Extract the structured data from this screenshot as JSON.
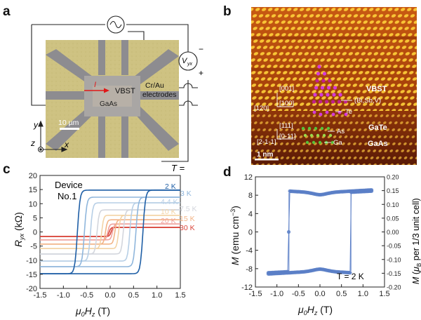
{
  "figure": {
    "panels": {
      "a": {
        "label": "a",
        "current_label": "I",
        "material_label": "VBST",
        "substrate_label": "GaAs",
        "electrode_label_1": "Cr/Au",
        "electrode_label_2": "electrodes",
        "voltage_label": "V",
        "voltage_sub": "yx",
        "minus_sign": "−",
        "plus_sign": "+",
        "scale_bar": "10 µm",
        "axis_y": "y",
        "axis_z": "z",
        "axis_x": "x"
      },
      "b": {
        "label": "b",
        "dir_001": "[001]",
        "dir_120": "[120]",
        "dir_100": "[100]",
        "dir_111": "[111]",
        "dir_0m11": "[0-11]",
        "dir_2m1m1": "[2-1-1]",
        "layer_vbst": "VBST",
        "layer_gate": "GaTe",
        "layer_gaas": "GaAs",
        "atom_bisbv": "(Bi,Sb,V)",
        "atom_te": "Te",
        "atom_as": "As",
        "atom_ga": "Ga",
        "scale_bar": "1 nm"
      },
      "c": {
        "label": "c",
        "device_line1": "Device",
        "device_line2": "No.1",
        "T_header": "T ="
      },
      "d": {
        "label": "d",
        "annotation": "T = 2 K"
      }
    }
  },
  "chart_data": [
    {
      "panel": "c",
      "type": "line",
      "xlabel": "μ0Hz (T)",
      "ylabel": "Ryx (kΩ)",
      "xlim": [
        -1.5,
        1.5
      ],
      "ylim": [
        -20,
        20
      ],
      "xticks": [
        "-1.5",
        "-1.0",
        "-0.5",
        "0.0",
        "0.5",
        "1.0",
        "1.5"
      ],
      "yticks": [
        "-20",
        "-15",
        "-10",
        "-5",
        "0",
        "5",
        "10",
        "15",
        "20"
      ],
      "legend_title": "T =",
      "series": [
        {
          "name": "2 K",
          "color": "#1f5fa6",
          "Rs": 14.8,
          "Hc": 0.7
        },
        {
          "name": "3 K",
          "color": "#8fb6dc",
          "Rs": 12.3,
          "Hc": 0.55
        },
        {
          "name": "4.4 K",
          "color": "#b7cfe6",
          "Rs": 10.3,
          "Hc": 0.42
        },
        {
          "name": "7.5 K",
          "color": "#d3d6dd",
          "Rs": 7.8,
          "Hc": 0.28
        },
        {
          "name": "10 K",
          "color": "#f3d3a5",
          "Rs": 5.9,
          "Hc": 0.18
        },
        {
          "name": "15 K",
          "color": "#f2b487",
          "Rs": 4.3,
          "Hc": 0.1
        },
        {
          "name": "20 K",
          "color": "#f0a29d",
          "Rs": 2.8,
          "Hc": 0.05
        },
        {
          "name": "30 K",
          "color": "#d9453a",
          "Rs": 1.6,
          "Hc": 0.02
        }
      ]
    },
    {
      "panel": "d",
      "type": "scatter",
      "xlabel": "μ0Hz (T)",
      "ylabel": "M (emu cm−3)",
      "ylabel_right": "M (μB per 1/3 unit cell)",
      "xlim": [
        -1.5,
        1.5
      ],
      "ylim": [
        -12,
        12
      ],
      "ylim_right": [
        -0.2,
        0.2
      ],
      "xticks": [
        "-1.5",
        "-1.0",
        "-0.5",
        "0.0",
        "0.5",
        "1.0",
        "1.5"
      ],
      "yticks": [
        "-12",
        "-8",
        "-4",
        "0",
        "4",
        "8",
        "12"
      ],
      "yticks_right": [
        "-0.20",
        "-0.15",
        "-0.10",
        "-0.05",
        "0.00",
        "0.05",
        "0.10",
        "0.15",
        "0.20"
      ],
      "color": "#5b7fc7",
      "Ms": 8.5,
      "Hc": 0.72,
      "annotation": "T = 2 K"
    }
  ]
}
